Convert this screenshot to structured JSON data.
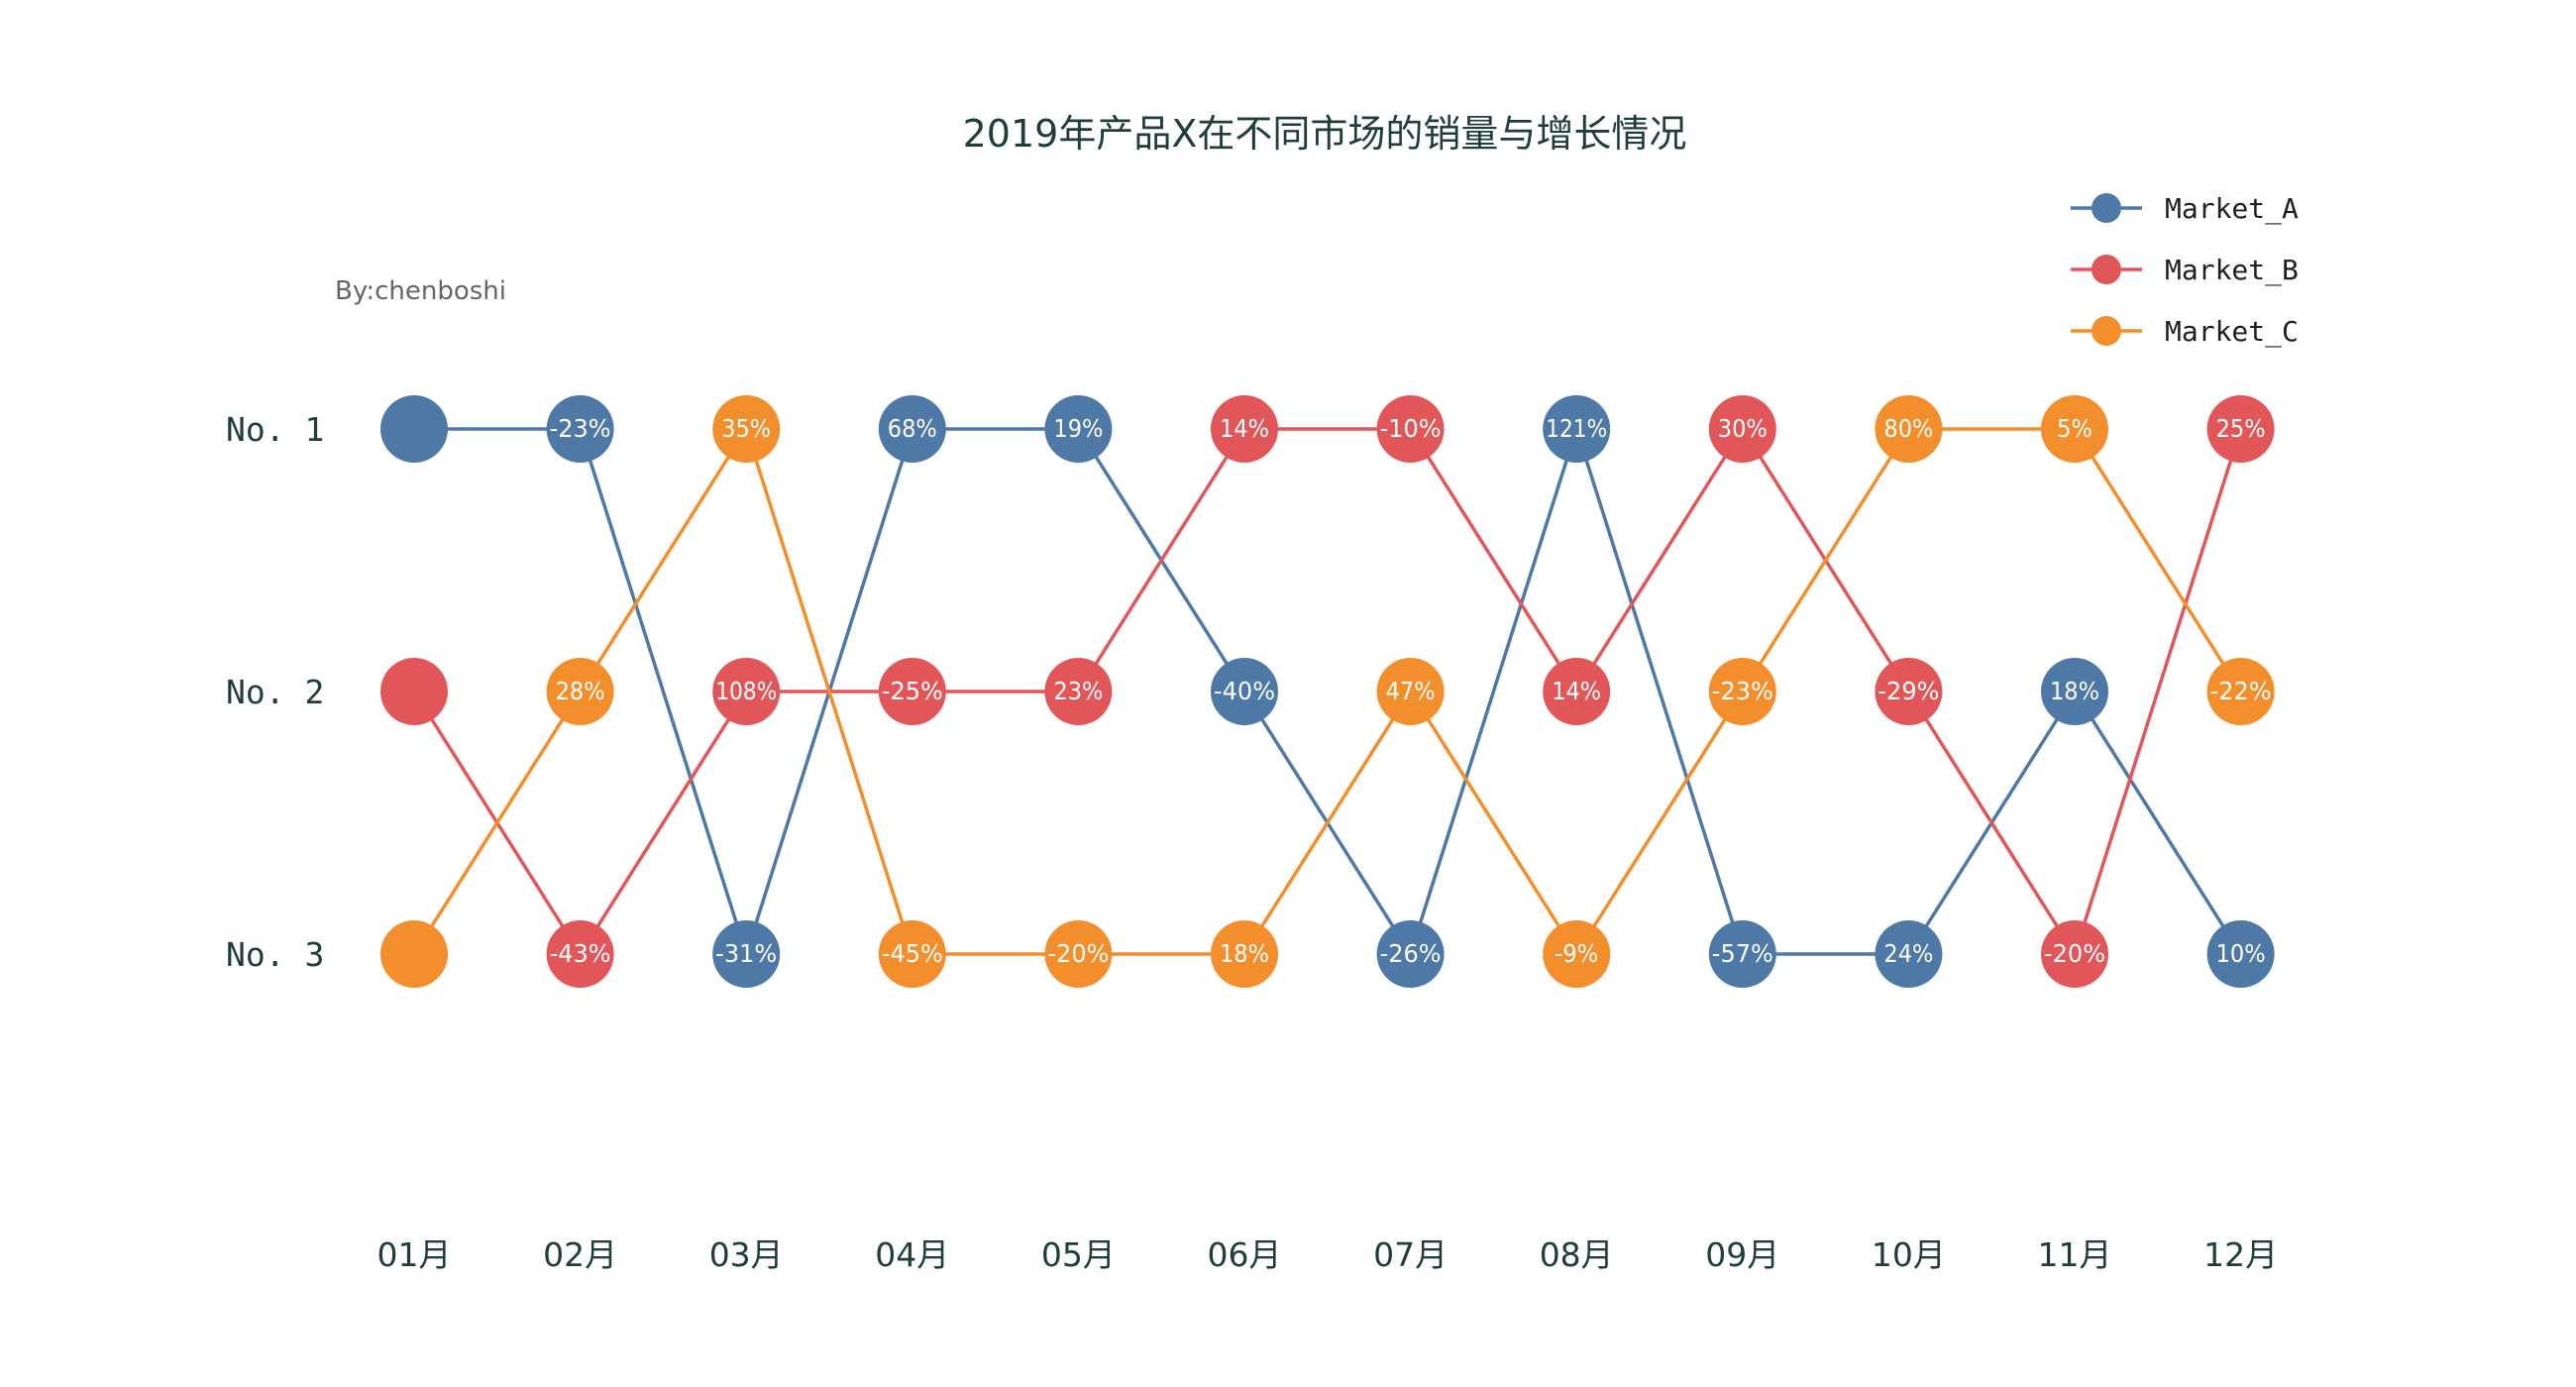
{
  "chart_data": {
    "type": "line",
    "title": "2019年产品X在不同市场的销量与增长情况",
    "subtitle": "By:chenboshi",
    "categories": [
      "01月",
      "02月",
      "03月",
      "04月",
      "05月",
      "06月",
      "07月",
      "08月",
      "09月",
      "10月",
      "11月",
      "12月"
    ],
    "y_categories": [
      "No. 1",
      "No. 2",
      "No. 3"
    ],
    "legend_position": "top-right",
    "grid": false,
    "series": [
      {
        "name": "Market_A",
        "color": "#4e79a7",
        "rank": [
          1,
          1,
          3,
          1,
          1,
          2,
          3,
          1,
          3,
          3,
          2,
          3
        ],
        "growth": [
          "",
          "-23%",
          "-31%",
          "68%",
          "19%",
          "-40%",
          "-26%",
          "121%",
          "-57%",
          "24%",
          "18%",
          "10%"
        ]
      },
      {
        "name": "Market_B",
        "color": "#e15759",
        "rank": [
          2,
          3,
          2,
          2,
          2,
          1,
          1,
          2,
          1,
          2,
          3,
          1
        ],
        "growth": [
          "",
          "-43%",
          "108%",
          "-25%",
          "23%",
          "14%",
          "-10%",
          "14%",
          "30%",
          "-29%",
          "-20%",
          "25%"
        ]
      },
      {
        "name": "Market_C",
        "color": "#f28e2b",
        "rank": [
          3,
          2,
          1,
          3,
          3,
          3,
          2,
          3,
          2,
          1,
          1,
          2
        ],
        "growth": [
          "",
          "28%",
          "35%",
          "-45%",
          "-20%",
          "18%",
          "47%",
          "-9%",
          "-23%",
          "80%",
          "5%",
          "-22%"
        ]
      }
    ]
  }
}
